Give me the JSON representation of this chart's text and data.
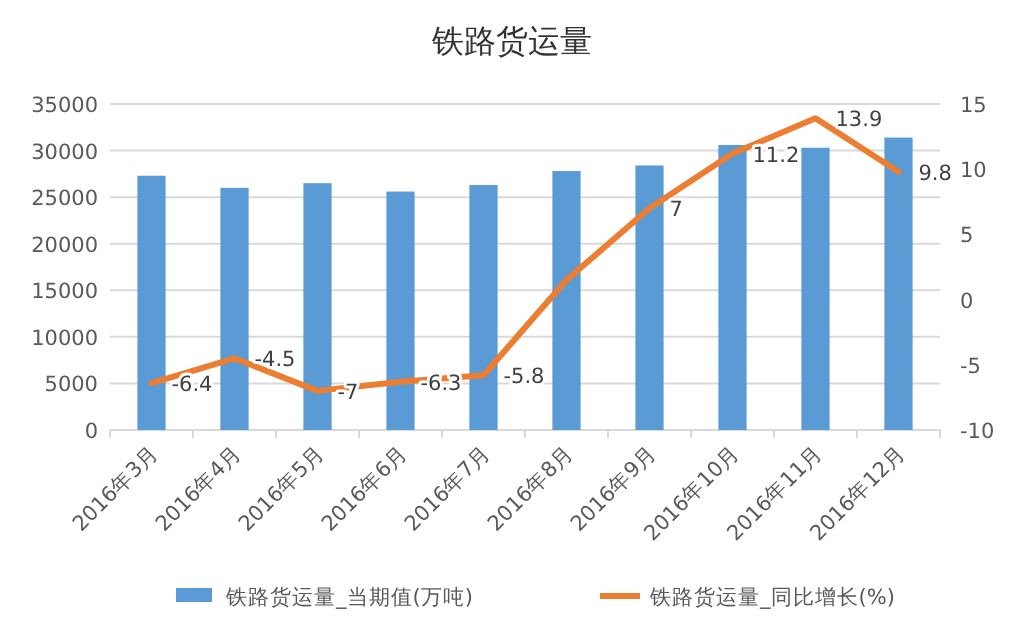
{
  "chart_data": {
    "type": "bar",
    "title": "铁路货运量",
    "categories": [
      "2016年3月",
      "2016年4月",
      "2016年5月",
      "2016年6月",
      "2016年7月",
      "2016年8月",
      "2016年9月",
      "2016年10月",
      "2016年11月",
      "2016年12月"
    ],
    "series": [
      {
        "name": "铁路货运量_当期值(万吨)",
        "color": "#5b9bd5",
        "values": [
          27300,
          26000,
          26500,
          25600,
          26300,
          27800,
          28400,
          30600,
          30300,
          31400
        ]
      },
      {
        "name": "铁路货运量_同比增长(%)",
        "type": "line",
        "axis": "y2",
        "color": "#ed7d31",
        "values": [
          -6.4,
          -4.5,
          -7,
          -6.3,
          -5.8,
          1.5,
          7,
          11.2,
          13.9,
          9.8
        ],
        "value_labels": [
          "-6.4",
          "-4.5",
          "-7",
          "-6.3",
          "-5.8",
          null,
          "7",
          "11.2",
          "13.9",
          "9.8"
        ]
      }
    ],
    "ylim": [
      0,
      35000
    ],
    "yticks": [
      0,
      5000,
      10000,
      15000,
      20000,
      25000,
      30000,
      35000
    ],
    "y2lim": [
      -10,
      15
    ],
    "y2ticks": [
      -10,
      -5,
      0,
      5,
      10,
      15
    ],
    "grid": "y",
    "legend": "bottom",
    "marker": "none"
  }
}
